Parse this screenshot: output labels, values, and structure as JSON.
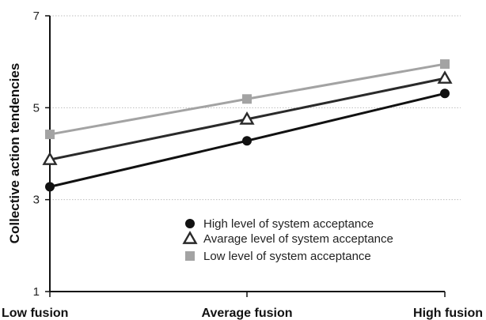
{
  "chart_data": {
    "type": "line",
    "categories": [
      "Low fusion",
      "Average fusion",
      "High fusion"
    ],
    "ylabel": "Collective action tendencies",
    "xlabel": "",
    "ylim": [
      1,
      7
    ],
    "yticks": [
      1,
      3,
      5,
      7
    ],
    "grid": "horizontal-dotted",
    "legend_placement": "bottom-right",
    "series": [
      {
        "name": "High level of system acceptance",
        "values": [
          3.28,
          4.28,
          5.31
        ],
        "color": "#111111",
        "marker": "circle"
      },
      {
        "name": "Avarage level of system acceptance",
        "values": [
          3.87,
          4.75,
          5.64
        ],
        "color": "#2a2a2a",
        "marker": "triangle-open"
      },
      {
        "name": "Low level of system acceptance",
        "values": [
          4.42,
          5.19,
          5.95
        ],
        "color": "#a3a3a3",
        "marker": "square"
      }
    ]
  }
}
